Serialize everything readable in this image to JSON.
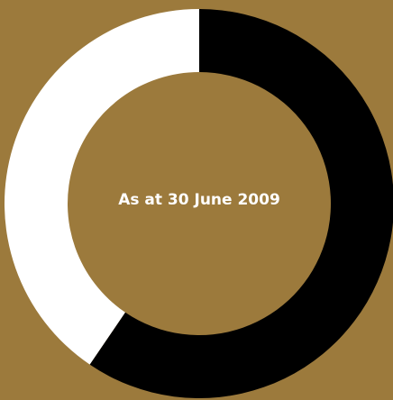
{
  "chart_data": {
    "type": "pie",
    "title": "As at 30 June 2009",
    "slices": [
      {
        "color": "#000000",
        "value": 59.5
      },
      {
        "color": "#ffffff",
        "value": 40.5
      }
    ]
  },
  "colors": {
    "background": "#9c7a3c",
    "center_text": "#ffffff"
  }
}
